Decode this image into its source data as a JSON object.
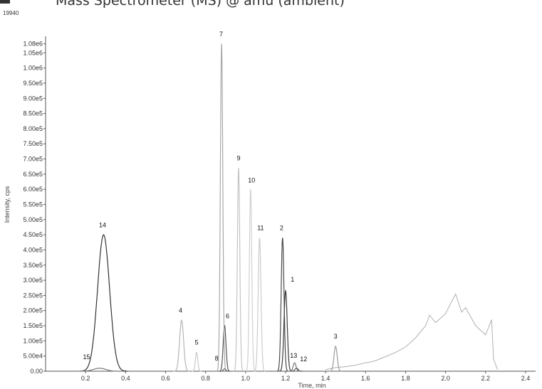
{
  "header": {
    "title": "Mass Spectrometer (MS) @  amu (ambient)",
    "id": "19940"
  },
  "chart_data": {
    "type": "line",
    "xlabel": "Time, min",
    "ylabel": "Intensity, cps",
    "xlim": [
      0.0,
      2.45
    ],
    "ylim": [
      0,
      1100000
    ],
    "x_ticks": [
      0.2,
      0.4,
      0.6,
      0.8,
      1.0,
      1.2,
      1.4,
      1.6,
      1.8,
      2.0,
      2.2,
      2.4
    ],
    "x_tick_labels": [
      "0.2",
      "0.4",
      "0.6",
      "0.8",
      "1.0",
      "1.2",
      "1.4",
      "1.6",
      "1.8",
      "2.0",
      "2.2",
      "2.4"
    ],
    "y_ticks": [
      0,
      50000,
      100000,
      150000,
      200000,
      250000,
      300000,
      350000,
      400000,
      450000,
      500000,
      550000,
      600000,
      650000,
      700000,
      750000,
      800000,
      850000,
      900000,
      950000,
      1000000,
      1050000,
      1080000
    ],
    "y_tick_labels": [
      "0.00",
      "5.00e4",
      "1.00e5",
      "1.50e5",
      "2.00e5",
      "2.50e5",
      "3.00e5",
      "3.50e5",
      "4.00e5",
      "4.50e5",
      "5.00e5",
      "5.50e5",
      "6.00e5",
      "6.50e5",
      "7.00e5",
      "7.50e5",
      "8.00e5",
      "8.50e5",
      "9.00e5",
      "9.50e5",
      "1.00e6",
      "1.05e6",
      "1.08e6"
    ],
    "grid": false,
    "peaks": [
      {
        "label": "1",
        "rt": 1.2,
        "height": 265000,
        "width": 0.008,
        "color": "#3a3a3a",
        "label_x": 1.235,
        "label_y": 295000
      },
      {
        "label": "2",
        "rt": 1.185,
        "height": 440000,
        "width": 0.007,
        "color": "#4a4a4a",
        "label_x": 1.18,
        "label_y": 465000
      },
      {
        "label": "3",
        "rt": 1.45,
        "height": 82000,
        "width": 0.008,
        "color": "#9a9a9a",
        "label_x": 1.45,
        "label_y": 108000
      },
      {
        "label": "4",
        "rt": 0.68,
        "height": 168000,
        "width": 0.01,
        "color": "#b5b5b5",
        "label_x": 0.675,
        "label_y": 193000
      },
      {
        "label": "5",
        "rt": 0.755,
        "height": 62000,
        "width": 0.006,
        "color": "#c8c8c8",
        "label_x": 0.755,
        "label_y": 88000
      },
      {
        "label": "6",
        "rt": 0.895,
        "height": 150000,
        "width": 0.007,
        "color": "#555555",
        "label_x": 0.91,
        "label_y": 175000
      },
      {
        "label": "7",
        "rt": 0.88,
        "height": 1080000,
        "width": 0.006,
        "color": "#a8a8a8",
        "label_x": 0.878,
        "label_y": 1105000
      },
      {
        "label": "8",
        "rt": 0.895,
        "height": 8000,
        "width": 0.006,
        "color": "#666666",
        "label_x": 0.855,
        "label_y": 35000
      },
      {
        "label": "9",
        "rt": 0.965,
        "height": 670000,
        "width": 0.006,
        "color": "#c4c4c4",
        "label_x": 0.965,
        "label_y": 695000
      },
      {
        "label": "10",
        "rt": 1.025,
        "height": 600000,
        "width": 0.006,
        "color": "#d0d0d0",
        "label_x": 1.03,
        "label_y": 623000
      },
      {
        "label": "11",
        "rt": 1.07,
        "height": 440000,
        "width": 0.007,
        "color": "#cccccc",
        "label_x": 1.075,
        "label_y": 465000
      },
      {
        "label": "12",
        "rt": 1.255,
        "height": 10000,
        "width": 0.008,
        "color": "#555555",
        "label_x": 1.29,
        "label_y": 33000
      },
      {
        "label": "13",
        "rt": 1.245,
        "height": 28000,
        "width": 0.007,
        "color": "#777777",
        "label_x": 1.24,
        "label_y": 45000
      },
      {
        "label": "14",
        "rt": 0.29,
        "height": 450000,
        "width": 0.03,
        "color": "#333333",
        "label_x": 0.285,
        "label_y": 475000
      },
      {
        "label": "15",
        "rt": 0.27,
        "height": 10000,
        "width": 0.03,
        "color": "#777777",
        "label_x": 0.205,
        "label_y": 40000
      }
    ],
    "background_series": {
      "color": "#b0b0b0",
      "x": [
        1.4,
        1.45,
        1.5,
        1.55,
        1.6,
        1.62,
        1.65,
        1.7,
        1.75,
        1.8,
        1.85,
        1.9,
        1.92,
        1.95,
        2.0,
        2.05,
        2.08,
        2.1,
        2.15,
        2.2,
        2.23,
        2.24,
        2.26
      ],
      "y": [
        5000,
        12000,
        15000,
        20000,
        28000,
        30000,
        35000,
        48000,
        62000,
        80000,
        110000,
        150000,
        185000,
        160000,
        190000,
        255000,
        195000,
        210000,
        150000,
        120000,
        170000,
        40000,
        5000
      ]
    }
  }
}
